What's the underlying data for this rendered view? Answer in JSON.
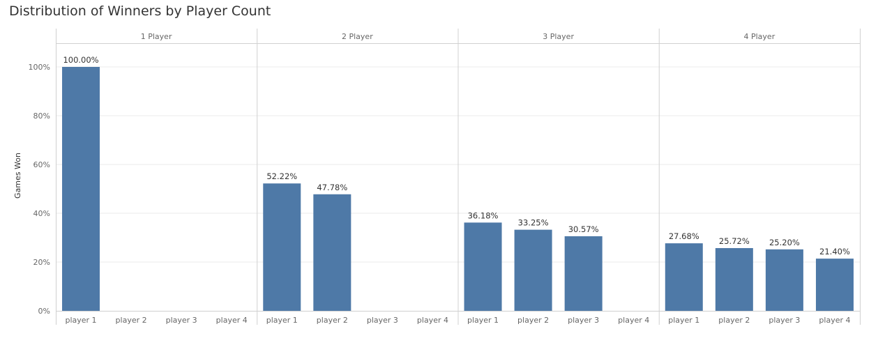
{
  "title": "Distribution of Winners by Player Count",
  "colors": {
    "bar": "#4e79a7",
    "grid": "#ebebeb",
    "border": "#d0d0d0",
    "text": "#333333",
    "muted": "#666666"
  },
  "chart_data": {
    "type": "bar",
    "title": "Distribution of Winners by Player Count",
    "ylabel": "Games Won",
    "xlabel": "",
    "ylim": [
      0,
      110
    ],
    "yticks": [
      0,
      20,
      40,
      60,
      80,
      100
    ],
    "ytick_labels": [
      "0%",
      "20%",
      "40%",
      "60%",
      "80%",
      "100%"
    ],
    "grid": true,
    "categories": [
      "player 1",
      "player 2",
      "player 3",
      "player 4"
    ],
    "panels": [
      {
        "label": "1 Player",
        "values": [
          100.0,
          null,
          null,
          null
        ],
        "value_labels": [
          "100.00%",
          "",
          "",
          ""
        ]
      },
      {
        "label": "2 Player",
        "values": [
          52.22,
          47.78,
          null,
          null
        ],
        "value_labels": [
          "52.22%",
          "47.78%",
          "",
          ""
        ]
      },
      {
        "label": "3 Player",
        "values": [
          36.18,
          33.25,
          30.57,
          null
        ],
        "value_labels": [
          "36.18%",
          "33.25%",
          "30.57%",
          ""
        ]
      },
      {
        "label": "4 Player",
        "values": [
          27.68,
          25.72,
          25.2,
          21.4
        ],
        "value_labels": [
          "27.68%",
          "25.72%",
          "25.20%",
          "21.40%"
        ]
      }
    ]
  }
}
